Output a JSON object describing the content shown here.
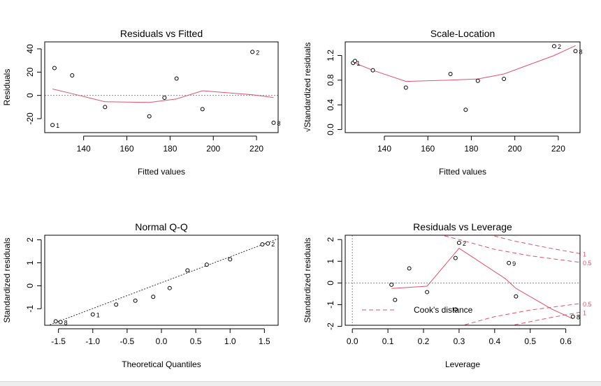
{
  "colors": {
    "axis": "#000000",
    "smooth": "#DF536B",
    "reference": "#8c8c8c",
    "cook": "#DF536B"
  },
  "chart_data": [
    {
      "id": "resid-fitted",
      "type": "scatter",
      "title": "Residuals vs Fitted",
      "xlabel": "Fitted values",
      "ylabel": "Residuals",
      "xlim": [
        122,
        230
      ],
      "ylim": [
        -32,
        46
      ],
      "xticks": [
        140,
        160,
        180,
        200,
        220
      ],
      "yticks": [
        -20,
        0,
        20,
        40
      ],
      "points": [
        {
          "x": 125.6,
          "y": -25.5,
          "label": "1"
        },
        {
          "x": 126.5,
          "y": 23.5,
          "label": ""
        },
        {
          "x": 134.7,
          "y": 17.2,
          "label": ""
        },
        {
          "x": 149.9,
          "y": -10.0,
          "label": ""
        },
        {
          "x": 170.4,
          "y": -18.0,
          "label": ""
        },
        {
          "x": 177.4,
          "y": -2.0,
          "label": ""
        },
        {
          "x": 183.0,
          "y": 14.5,
          "label": ""
        },
        {
          "x": 195.0,
          "y": -11.8,
          "label": ""
        },
        {
          "x": 218.1,
          "y": 37.4,
          "label": "2"
        },
        {
          "x": 227.9,
          "y": -23.5,
          "label": "8"
        }
      ],
      "smooth": [
        {
          "x": 125.6,
          "y": 5.5
        },
        {
          "x": 134.7,
          "y": 1.5
        },
        {
          "x": 149.9,
          "y": -5.5
        },
        {
          "x": 170.4,
          "y": -6.0
        },
        {
          "x": 183.0,
          "y": -3.0
        },
        {
          "x": 195.0,
          "y": 4.0
        },
        {
          "x": 218.1,
          "y": 0.5
        },
        {
          "x": 227.9,
          "y": -1.8
        }
      ],
      "hline": 0
    },
    {
      "id": "scale-location",
      "type": "scatter",
      "title": "Scale-Location",
      "xlabel": "Fitted values",
      "ylabel": "√Standardized residuals",
      "xlim": [
        122,
        230
      ],
      "ylim": [
        -0.05,
        1.42
      ],
      "xticks": [
        140,
        160,
        180,
        200,
        220
      ],
      "yticks": [
        0.0,
        0.4,
        0.8,
        1.2
      ],
      "points": [
        {
          "x": 125.6,
          "y": 1.08,
          "label": "1"
        },
        {
          "x": 126.5,
          "y": 1.11,
          "label": ""
        },
        {
          "x": 134.7,
          "y": 0.96,
          "label": ""
        },
        {
          "x": 149.9,
          "y": 0.68,
          "label": ""
        },
        {
          "x": 170.4,
          "y": 0.9,
          "label": ""
        },
        {
          "x": 177.4,
          "y": 0.32,
          "label": ""
        },
        {
          "x": 183.0,
          "y": 0.79,
          "label": ""
        },
        {
          "x": 195.0,
          "y": 0.82,
          "label": ""
        },
        {
          "x": 218.1,
          "y": 1.35,
          "label": "2"
        },
        {
          "x": 227.9,
          "y": 1.27,
          "label": "8"
        }
      ],
      "smooth": [
        {
          "x": 125.6,
          "y": 1.09
        },
        {
          "x": 134.7,
          "y": 0.96
        },
        {
          "x": 149.9,
          "y": 0.78
        },
        {
          "x": 170.4,
          "y": 0.8
        },
        {
          "x": 183.0,
          "y": 0.82
        },
        {
          "x": 195.0,
          "y": 0.9
        },
        {
          "x": 218.1,
          "y": 1.2
        },
        {
          "x": 227.9,
          "y": 1.36
        }
      ]
    },
    {
      "id": "normal-qq",
      "type": "scatter",
      "title": "Normal Q-Q",
      "xlabel": "Theoretical Quantiles",
      "ylabel": "Standardized residuals",
      "xlim": [
        -1.7,
        1.7
      ],
      "ylim": [
        -1.72,
        2.2
      ],
      "xticks": [
        -1.5,
        -1.0,
        -0.5,
        0.0,
        0.5,
        1.0,
        1.5
      ],
      "xticklabels": [
        "-1.5",
        "-1.0",
        "-0.5",
        "0.0",
        "0.5",
        "1.0",
        "1.5"
      ],
      "yticks": [
        -1,
        0,
        1,
        2
      ],
      "points": [
        {
          "x": -1.54,
          "y": -1.55,
          "label": ""
        },
        {
          "x": -1.47,
          "y": -1.58,
          "label": "8"
        },
        {
          "x": -1.0,
          "y": -1.25,
          "label": "1"
        },
        {
          "x": -0.66,
          "y": -0.82,
          "label": ""
        },
        {
          "x": -0.38,
          "y": -0.65,
          "label": ""
        },
        {
          "x": -0.12,
          "y": -0.48,
          "label": ""
        },
        {
          "x": 0.12,
          "y": -0.1,
          "label": ""
        },
        {
          "x": 0.38,
          "y": 0.67,
          "label": ""
        },
        {
          "x": 0.66,
          "y": 0.92,
          "label": ""
        },
        {
          "x": 1.0,
          "y": 1.15,
          "label": ""
        },
        {
          "x": 1.47,
          "y": 1.8,
          "label": ""
        },
        {
          "x": 1.55,
          "y": 1.84,
          "label": "2"
        }
      ],
      "refline": [
        {
          "x": -1.7,
          "y": -1.78
        },
        {
          "x": 1.7,
          "y": 2.05
        }
      ]
    },
    {
      "id": "resid-leverage",
      "type": "scatter",
      "title": "Residuals vs Leverage",
      "xlabel": "Leverage",
      "ylabel": "Standardized residuals",
      "xlim": [
        -0.02,
        0.64
      ],
      "ylim": [
        -1.95,
        2.2
      ],
      "xticks": [
        0.0,
        0.1,
        0.2,
        0.3,
        0.4,
        0.5,
        0.6
      ],
      "xticklabels": [
        "0.0",
        "0.1",
        "0.2",
        "0.3",
        "0.4",
        "0.5",
        "0.6"
      ],
      "yticks": [
        -2,
        -1,
        0,
        1,
        2
      ],
      "points": [
        {
          "x": 0.11,
          "y": -0.08,
          "label": ""
        },
        {
          "x": 0.12,
          "y": -0.78,
          "label": ""
        },
        {
          "x": 0.16,
          "y": 0.67,
          "label": ""
        },
        {
          "x": 0.21,
          "y": -0.42,
          "label": ""
        },
        {
          "x": 0.29,
          "y": 1.15,
          "label": ""
        },
        {
          "x": 0.29,
          "y": -1.22,
          "label": ""
        },
        {
          "x": 0.3,
          "y": 1.85,
          "label": "2"
        },
        {
          "x": 0.44,
          "y": 0.92,
          "label": "9"
        },
        {
          "x": 0.46,
          "y": -0.62,
          "label": ""
        },
        {
          "x": 0.62,
          "y": -1.55,
          "label": "8"
        }
      ],
      "smooth": [
        {
          "x": 0.11,
          "y": -0.25
        },
        {
          "x": 0.21,
          "y": -0.15
        },
        {
          "x": 0.3,
          "y": 1.6
        },
        {
          "x": 0.43,
          "y": 0.2
        },
        {
          "x": 0.46,
          "y": -0.25
        },
        {
          "x": 0.56,
          "y": -1.2
        },
        {
          "x": 0.62,
          "y": -1.65
        }
      ],
      "cook_curves": [
        {
          "level": "0.5",
          "sign": 1,
          "points": [
            {
              "x": 0.24,
              "y": 2.25
            },
            {
              "x": 0.3,
              "y": 2.0
            },
            {
              "x": 0.4,
              "y": 1.55
            },
            {
              "x": 0.5,
              "y": 1.25
            },
            {
              "x": 0.64,
              "y": 0.95
            }
          ]
        },
        {
          "level": "1",
          "sign": 1,
          "points": [
            {
              "x": 0.38,
              "y": 2.25
            },
            {
              "x": 0.45,
              "y": 1.95
            },
            {
              "x": 0.55,
              "y": 1.62
            },
            {
              "x": 0.64,
              "y": 1.35
            }
          ]
        },
        {
          "level": "0.5",
          "sign": -1,
          "points": [
            {
              "x": 0.24,
              "y": -2.25
            },
            {
              "x": 0.3,
              "y": -2.0
            },
            {
              "x": 0.4,
              "y": -1.55
            },
            {
              "x": 0.5,
              "y": -1.25
            },
            {
              "x": 0.64,
              "y": -0.95
            }
          ]
        },
        {
          "level": "1",
          "sign": -1,
          "points": [
            {
              "x": 0.38,
              "y": -2.25
            },
            {
              "x": 0.45,
              "y": -1.95
            },
            {
              "x": 0.55,
              "y": -1.62
            },
            {
              "x": 0.64,
              "y": -1.35
            }
          ]
        }
      ],
      "legend": {
        "text": "Cook's distance",
        "placement": "bottom-left"
      },
      "hline": 0,
      "vline": 0
    }
  ]
}
